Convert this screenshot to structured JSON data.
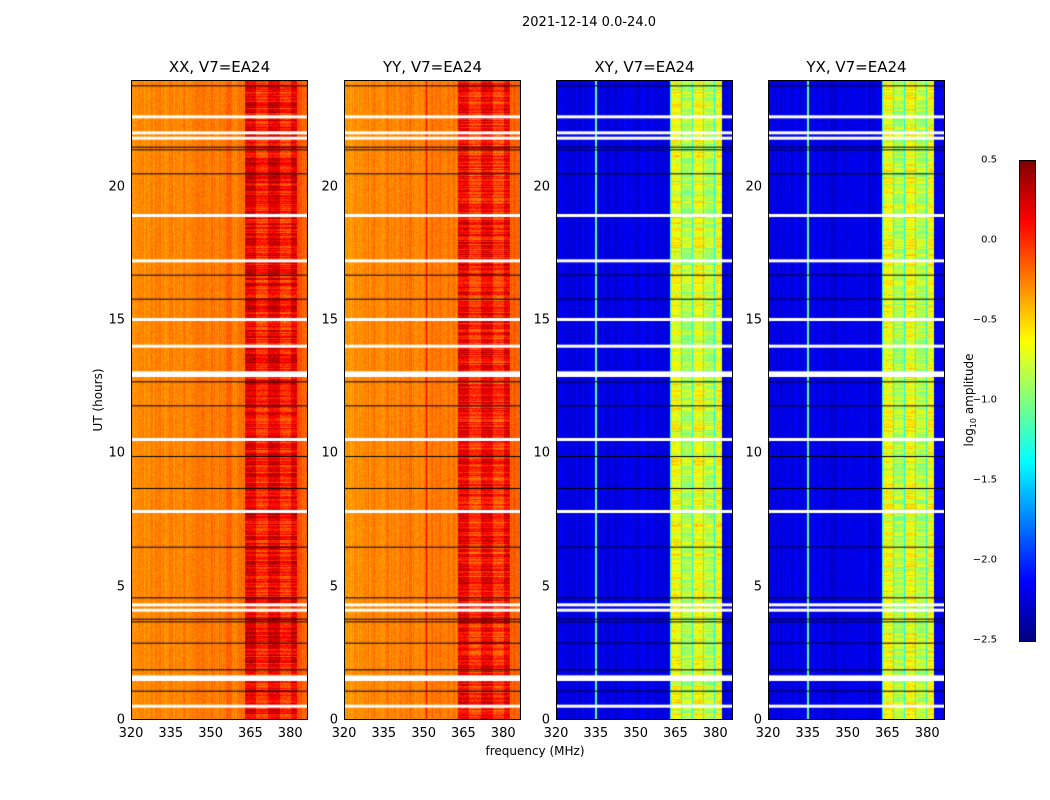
{
  "suptitle": "2021-12-14 0.0-24.0",
  "chart_data": {
    "type": "heatmap",
    "xlabel": "frequency (MHz)",
    "ylabel": "UT (hours)",
    "xlim": [
      320,
      386.7
    ],
    "ylim": [
      0,
      24
    ],
    "xticks": [
      "320",
      "335",
      "350",
      "365",
      "380"
    ],
    "xtick_values": [
      320,
      335,
      350,
      365,
      380
    ],
    "yticks": [
      "0",
      "5",
      "10",
      "15",
      "20"
    ],
    "ytick_values": [
      0,
      5,
      10,
      15,
      20
    ],
    "colorbar": {
      "label_prefix": "log",
      "label_sub": "10",
      "label_suffix": " amplitude",
      "range": [
        -2.5,
        0.5
      ],
      "ticks": [
        "0.5",
        "0.0",
        "−0.5",
        "−1.0",
        "−1.5",
        "−2.0",
        "−2.5"
      ],
      "tick_values": [
        0.5,
        0,
        -0.5,
        -1,
        -1.5,
        -2,
        -2.5
      ],
      "colormap": "jet"
    },
    "panels": [
      {
        "title": "XX, V7=EA24",
        "base_level": -0.3,
        "band_level": 0.15,
        "band_range_mhz": [
          362.6,
          382.5
        ]
      },
      {
        "title": "YY, V7=EA24",
        "base_level": -0.3,
        "band_level": 0.1,
        "band_range_mhz": [
          362.6,
          382.5
        ]
      },
      {
        "title": "XY, V7=EA24",
        "base_level": -2.2,
        "band_level": -0.7,
        "band_range_mhz": [
          362.6,
          382.5
        ]
      },
      {
        "title": "YX, V7=EA24",
        "base_level": -2.2,
        "band_level": -0.7,
        "band_range_mhz": [
          362.6,
          382.5
        ]
      }
    ],
    "flagged_hours_white": [
      22.6,
      22.0,
      21.8,
      18.9,
      17.2,
      15.0,
      14.0,
      13.0,
      12.9,
      10.5,
      7.8,
      4.3,
      4.1,
      1.6,
      1.5,
      0.5
    ],
    "flagged_hours_black": [
      23.8,
      21.5,
      21.4,
      20.5,
      16.7,
      15.8,
      12.7,
      11.8,
      9.9,
      8.7,
      6.5,
      4.6,
      3.8,
      3.7,
      2.9,
      1.9,
      1.1
    ]
  }
}
